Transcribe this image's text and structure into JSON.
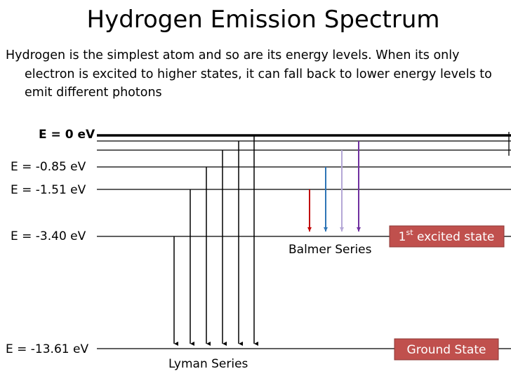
{
  "title": "Hydrogen Emission Spectrum",
  "description": "Hydrogen is the simplest atom and so are its energy levels. When its only electron is excited to higher states, it can fall back to lower energy levels to emit different photons",
  "levels": [
    "E = 0 eV",
    "E = -0.85 eV",
    "E = -1.51 eV",
    "E = -3.40 eV",
    "E = -13.61 eV"
  ],
  "series": {
    "balmer": "Balmer Series",
    "lyman": "Lyman Series"
  },
  "states": {
    "excited": {
      "number": "1",
      "suffix": "st",
      "text": " excited state"
    },
    "ground": "Ground State"
  }
}
